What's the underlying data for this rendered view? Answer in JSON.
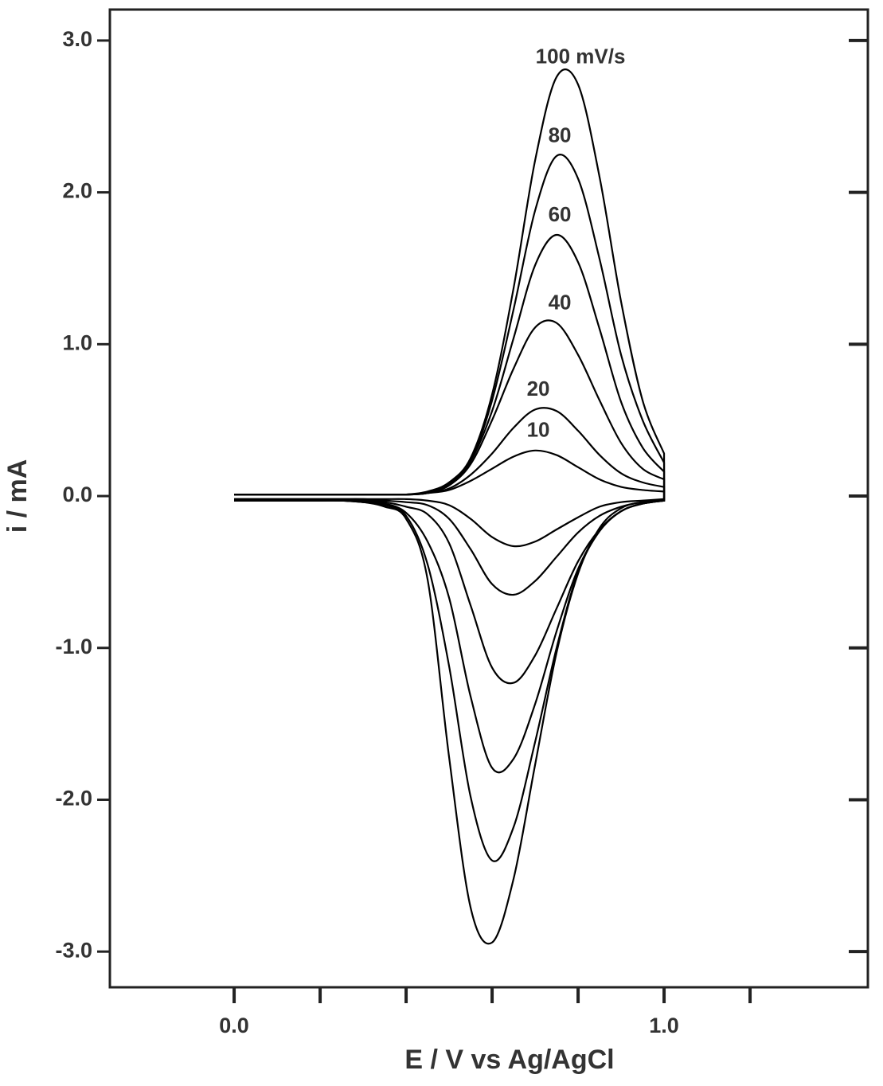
{
  "chart_data": {
    "type": "line",
    "xlabel": "E / V vs Ag/AgCl",
    "ylabel": "i / mA",
    "xlim": [
      -0.289,
      1.474
    ],
    "ylim": [
      -3.235,
      3.204
    ],
    "xticks": [
      {
        "value": 0,
        "label": "0.0"
      },
      {
        "value": 1,
        "label": "1.0"
      }
    ],
    "xticks_minor": [
      0.2,
      0.4,
      0.6,
      0.8,
      1.2
    ],
    "yticks": [
      {
        "value": 3,
        "label": "3.0"
      },
      {
        "value": 2,
        "label": "2.0"
      },
      {
        "value": 1,
        "label": "1.0"
      },
      {
        "value": 0,
        "label": "0.0"
      },
      {
        "value": -1,
        "label": "-1.0"
      },
      {
        "value": -2,
        "label": "-2.0"
      },
      {
        "value": -3,
        "label": "-3.0"
      }
    ],
    "x": [
      0,
      0.05,
      0.1,
      0.15,
      0.2,
      0.25,
      0.3,
      0.35,
      0.4,
      0.45,
      0.5,
      0.55,
      0.6,
      0.65,
      0.7,
      0.75,
      0.8,
      0.85,
      0.9,
      0.95,
      1.0,
      1.0,
      0.95,
      0.9,
      0.85,
      0.8,
      0.75,
      0.7,
      0.65,
      0.6,
      0.55,
      0.5,
      0.45,
      0.4,
      0.35,
      0.3,
      0.25,
      0.2,
      0.15,
      0.1,
      0.05,
      0
    ],
    "series": [
      {
        "name": "100 mV/s",
        "color": "#000000",
        "values": [
          0.01,
          0.01,
          0.01,
          0.01,
          0.01,
          0.01,
          0.01,
          0.01,
          0.01,
          0.03,
          0.09,
          0.25,
          0.67,
          1.37,
          2.21,
          2.76,
          2.71,
          2.1,
          1.28,
          0.63,
          0.28,
          -0.03,
          -0.04,
          -0.08,
          -0.21,
          -0.51,
          -1.03,
          -1.77,
          -2.52,
          -2.94,
          -2.71,
          -1.72,
          -0.55,
          -0.15,
          -0.07,
          -0.04,
          -0.03,
          -0.03,
          -0.03,
          -0.03,
          -0.03,
          -0.03
        ]
      },
      {
        "name": "80",
        "color": "#000000",
        "values": [
          0.01,
          0.01,
          0.01,
          0.01,
          0.01,
          0.01,
          0.01,
          0.01,
          0.01,
          0.02,
          0.08,
          0.23,
          0.63,
          1.23,
          1.88,
          2.24,
          2.09,
          1.56,
          0.93,
          0.5,
          0.22,
          -0.03,
          -0.05,
          -0.1,
          -0.23,
          -0.5,
          -1.0,
          -1.62,
          -2.18,
          -2.4,
          -1.98,
          -1.12,
          -0.45,
          -0.13,
          -0.06,
          -0.04,
          -0.03,
          -0.03,
          -0.03,
          -0.03,
          -0.03,
          -0.03
        ]
      },
      {
        "name": "60",
        "color": "#000000",
        "values": [
          0.01,
          0.01,
          0.01,
          0.01,
          0.01,
          0.01,
          0.01,
          0.01,
          0.01,
          0.02,
          0.08,
          0.23,
          0.56,
          1.04,
          1.52,
          1.72,
          1.54,
          1.1,
          0.62,
          0.32,
          0.16,
          -0.03,
          -0.05,
          -0.1,
          -0.23,
          -0.48,
          -0.89,
          -1.37,
          -1.73,
          -1.79,
          -1.32,
          -0.67,
          -0.3,
          -0.11,
          -0.05,
          -0.04,
          -0.03,
          -0.03,
          -0.03,
          -0.03,
          -0.03,
          -0.03
        ]
      },
      {
        "name": "40",
        "color": "#000000",
        "values": [
          0.01,
          0.01,
          0.01,
          0.01,
          0.01,
          0.01,
          0.01,
          0.01,
          0.01,
          0.02,
          0.07,
          0.21,
          0.5,
          0.84,
          1.11,
          1.14,
          0.93,
          0.63,
          0.35,
          0.18,
          0.11,
          -0.03,
          -0.05,
          -0.1,
          -0.22,
          -0.43,
          -0.74,
          -1.05,
          -1.23,
          -1.13,
          -0.72,
          -0.31,
          -0.12,
          -0.07,
          -0.04,
          -0.03,
          -0.03,
          -0.03,
          -0.03,
          -0.03,
          -0.03,
          -0.03
        ]
      },
      {
        "name": "20",
        "color": "#000000",
        "values": [
          0.01,
          0.01,
          0.01,
          0.01,
          0.01,
          0.01,
          0.01,
          0.01,
          0.01,
          0.02,
          0.05,
          0.14,
          0.28,
          0.45,
          0.57,
          0.56,
          0.43,
          0.27,
          0.15,
          0.09,
          0.06,
          -0.03,
          -0.04,
          -0.07,
          -0.13,
          -0.24,
          -0.4,
          -0.56,
          -0.65,
          -0.58,
          -0.35,
          -0.15,
          -0.06,
          -0.04,
          -0.03,
          -0.02,
          -0.02,
          -0.02,
          -0.02,
          -0.02,
          -0.02,
          -0.02
        ]
      },
      {
        "name": "10",
        "color": "#000000",
        "values": [
          0.01,
          0.01,
          0.01,
          0.01,
          0.01,
          0.01,
          0.01,
          0.01,
          0.01,
          0.02,
          0.04,
          0.1,
          0.18,
          0.26,
          0.3,
          0.27,
          0.19,
          0.11,
          0.06,
          0.04,
          0.03,
          -0.02,
          -0.03,
          -0.04,
          -0.07,
          -0.14,
          -0.22,
          -0.3,
          -0.33,
          -0.27,
          -0.15,
          -0.06,
          -0.03,
          -0.02,
          -0.02,
          -0.02,
          -0.02,
          -0.02,
          -0.02,
          -0.02,
          -0.02,
          -0.02
        ]
      }
    ]
  }
}
